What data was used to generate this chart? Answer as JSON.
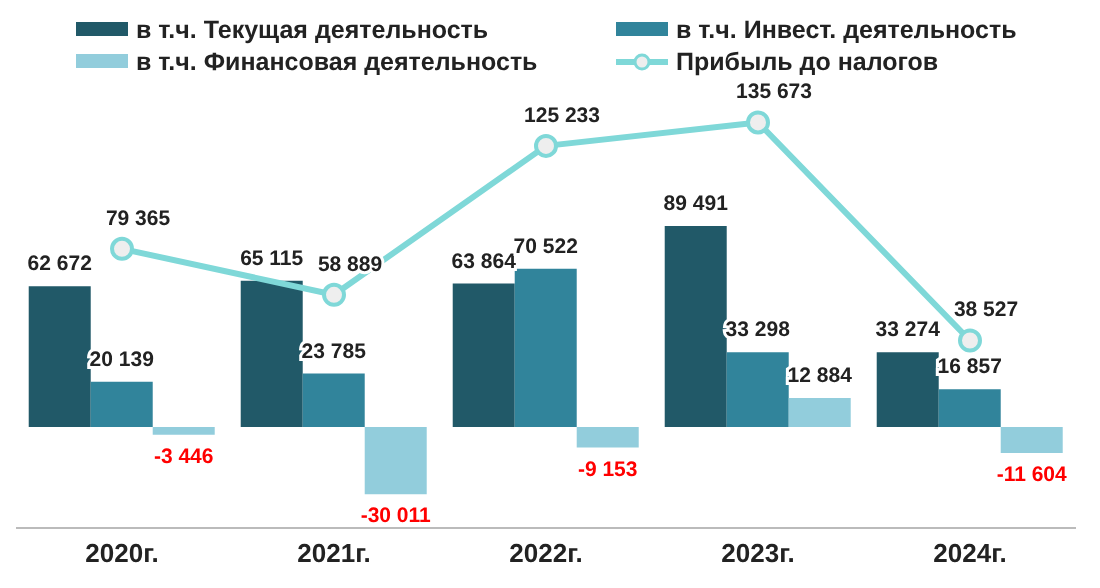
{
  "chart_data": {
    "type": "bar",
    "categories": [
      "2020г.",
      "2021г.",
      "2022г.",
      "2023г.",
      "2024г."
    ],
    "legend": "top",
    "series": [
      {
        "name": "в т.ч. Текущая деятельность",
        "color": "#215968",
        "values": [
          62672,
          65115,
          63864,
          89491,
          33274
        ],
        "value_labels": [
          "62 672",
          "65 115",
          "63 864",
          "89 491",
          "33 274"
        ]
      },
      {
        "name": "в т.ч. Инвест. деятельность",
        "color": "#31849b",
        "values": [
          20139,
          23785,
          70522,
          33298,
          16857
        ],
        "value_labels": [
          "20 139",
          "23 785",
          "70 522",
          "33 298",
          "16 857"
        ]
      },
      {
        "name": "в т.ч. Финансовая деятельность",
        "color": "#92cddc",
        "values": [
          -3446,
          -30011,
          -9153,
          12884,
          -11604
        ],
        "value_labels": [
          "-3 446",
          "-30 011",
          "-9 153",
          "12 884",
          "-11 604"
        ]
      },
      {
        "name": "Прибыль до налогов",
        "type": "line",
        "color": "#7fd8d8",
        "marker": "circle",
        "values": [
          79365,
          58889,
          125233,
          135673,
          38527
        ],
        "value_labels": [
          "79 365",
          "58 889",
          "125 233",
          "135 673",
          "38 527"
        ]
      }
    ]
  }
}
